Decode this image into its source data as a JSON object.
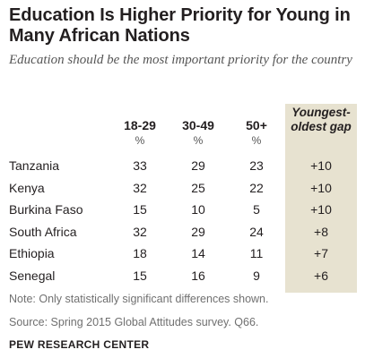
{
  "title": "Education Is Higher Priority for Young in Many African Nations",
  "subtitle": "Education should be the most important priority for the country",
  "chart_data": {
    "type": "table",
    "columns": [
      "18-29",
      "30-49",
      "50+"
    ],
    "unit": "%",
    "gap_header": "Youngest-oldest gap",
    "rows": [
      {
        "country": "Tanzania",
        "values": [
          33,
          29,
          23
        ],
        "gap": "+10"
      },
      {
        "country": "Kenya",
        "values": [
          32,
          25,
          22
        ],
        "gap": "+10"
      },
      {
        "country": "Burkina Faso",
        "values": [
          15,
          10,
          5
        ],
        "gap": "+10"
      },
      {
        "country": "South Africa",
        "values": [
          32,
          29,
          24
        ],
        "gap": "+8"
      },
      {
        "country": "Ethiopia",
        "values": [
          18,
          14,
          11
        ],
        "gap": "+7"
      },
      {
        "country": "Senegal",
        "values": [
          15,
          16,
          9
        ],
        "gap": "+6"
      }
    ]
  },
  "note": "Note: Only statistically significant differences shown.",
  "source": "Source: Spring 2015 Global Attitudes survey. Q66.",
  "brand": "PEW RESEARCH CENTER",
  "colors": {
    "gap_column_bg": "#e7e2d0",
    "footnote_text": "#707070"
  }
}
